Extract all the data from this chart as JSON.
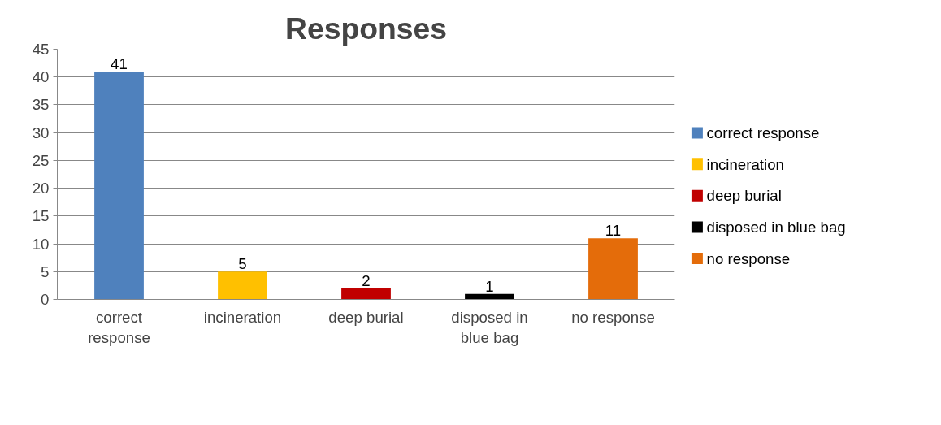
{
  "chart_data": {
    "type": "bar",
    "title": "Responses",
    "categories": [
      "correct response",
      "incineration",
      "deep burial",
      "disposed in blue bag",
      "no response"
    ],
    "series": [
      {
        "name": "correct response",
        "color": "#4f81bd",
        "values": [
          41,
          null,
          null,
          null,
          null
        ]
      },
      {
        "name": "incineration",
        "color": "#ffc000",
        "values": [
          null,
          5,
          null,
          null,
          null
        ]
      },
      {
        "name": "deep burial",
        "color": "#c00000",
        "values": [
          null,
          null,
          2,
          null,
          null
        ]
      },
      {
        "name": "disposed in blue bag",
        "color": "#000000",
        "values": [
          null,
          null,
          null,
          1,
          null
        ]
      },
      {
        "name": "no response",
        "color": "#e46c0a",
        "values": [
          null,
          null,
          null,
          null,
          11
        ]
      }
    ],
    "ylim": [
      0,
      45
    ],
    "yticks": [
      0,
      5,
      10,
      15,
      20,
      25,
      30,
      35,
      40,
      45
    ],
    "grid": "y",
    "legend": "right",
    "data_labels": true
  }
}
